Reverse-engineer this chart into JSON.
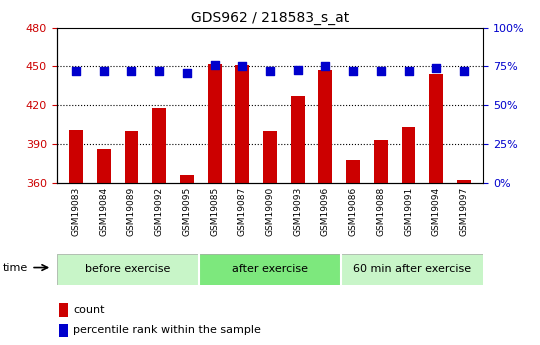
{
  "title": "GDS962 / 218583_s_at",
  "samples": [
    "GSM19083",
    "GSM19084",
    "GSM19089",
    "GSM19092",
    "GSM19095",
    "GSM19085",
    "GSM19087",
    "GSM19090",
    "GSM19093",
    "GSM19096",
    "GSM19086",
    "GSM19088",
    "GSM19091",
    "GSM19094",
    "GSM19097"
  ],
  "counts": [
    401,
    386,
    400,
    418,
    366,
    452,
    451,
    400,
    427,
    447,
    378,
    393,
    403,
    444,
    362
  ],
  "percentiles": [
    72,
    72,
    72,
    72,
    71,
    76,
    75,
    72,
    73,
    75,
    72,
    72,
    72,
    74,
    72
  ],
  "groups": [
    {
      "label": "before exercise",
      "start": 0,
      "end": 5,
      "color": "#c8f5c8"
    },
    {
      "label": "after exercise",
      "start": 5,
      "end": 10,
      "color": "#7de87d"
    },
    {
      "label": "60 min after exercise",
      "start": 10,
      "end": 15,
      "color": "#c8f5c8"
    }
  ],
  "ymin": 360,
  "ymax": 480,
  "yticks": [
    360,
    390,
    420,
    450,
    480
  ],
  "y2min": 0,
  "y2max": 100,
  "y2ticks": [
    0,
    25,
    50,
    75,
    100
  ],
  "bar_color": "#cc0000",
  "dot_color": "#0000cc",
  "plot_bg": "#ffffff",
  "tick_label_color": "#cc0000",
  "tick_label_color2": "#0000cc",
  "bar_width": 0.5,
  "dot_size": 35,
  "grid_color": "#000000",
  "xtick_bg": "#d0d0d0"
}
